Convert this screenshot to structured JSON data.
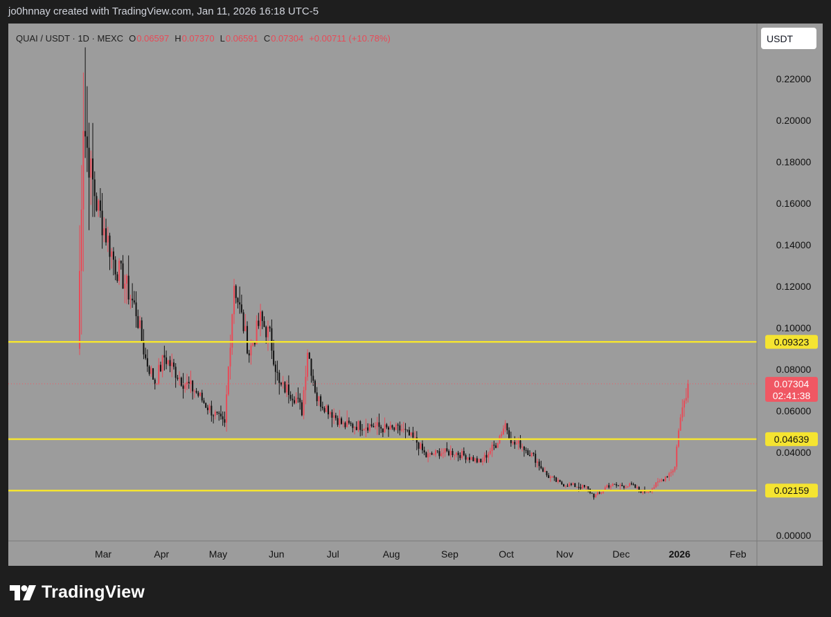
{
  "header": {
    "attribution": "jo0hnnay created with TradingView.com, Jan 11, 2026 16:18 UTC-5"
  },
  "legend": {
    "symbol": "QUAI / USDT · 1D · MEXC",
    "open_label": "O",
    "open": "0.06597",
    "high_label": "H",
    "high": "0.07370",
    "low_label": "L",
    "low": "0.06591",
    "close_label": "C",
    "close": "0.07304",
    "change": "+0.00711 (+10.78%)"
  },
  "currency_button": "USDT",
  "branding": {
    "name": "TradingView"
  },
  "colors": {
    "background": "#1e1e1e",
    "plot": "#9c9c9c",
    "up": "#e84a57",
    "down": "#111111",
    "level": "#f5e431",
    "level_label_bg": "#f5e431",
    "price_label_bg": "#f05763"
  },
  "chart_data": {
    "type": "candlestick",
    "symbol": "QUAI / USDT",
    "interval": "1D",
    "exchange": "MEXC",
    "x_labels": [
      "Mar",
      "Apr",
      "May",
      "Jun",
      "Jul",
      "Aug",
      "Sep",
      "Oct",
      "Nov",
      "Dec",
      "2026",
      "Feb"
    ],
    "y_ticks": [
      "0.22000",
      "0.20000",
      "0.18000",
      "0.16000",
      "0.14000",
      "0.12000",
      "0.10000",
      "0.08000",
      "0.06000",
      "0.04000",
      "0.00000"
    ],
    "ylim": [
      0,
      0.24
    ],
    "horizontal_levels": [
      {
        "value": 0.09323,
        "label": "0.09323"
      },
      {
        "value": 0.04639,
        "label": "0.04639"
      },
      {
        "value": 0.02159,
        "label": "0.02159"
      }
    ],
    "current_price": {
      "value": 0.07304,
      "label": "0.07304",
      "countdown": "02:41:38"
    },
    "grid": false,
    "daily_close_path": [
      {
        "date": "2025-02-21",
        "close": 0.09
      },
      {
        "date": "2025-02-24",
        "close": 0.2
      },
      {
        "date": "2025-02-27",
        "close": 0.18
      },
      {
        "date": "2025-03-03",
        "close": 0.16
      },
      {
        "date": "2025-03-08",
        "close": 0.145
      },
      {
        "date": "2025-03-13",
        "close": 0.13
      },
      {
        "date": "2025-03-18",
        "close": 0.122
      },
      {
        "date": "2025-03-24",
        "close": 0.108
      },
      {
        "date": "2025-03-29",
        "close": 0.085
      },
      {
        "date": "2025-04-03",
        "close": 0.074
      },
      {
        "date": "2025-04-08",
        "close": 0.086
      },
      {
        "date": "2025-04-13",
        "close": 0.08
      },
      {
        "date": "2025-04-18",
        "close": 0.074
      },
      {
        "date": "2025-04-24",
        "close": 0.07
      },
      {
        "date": "2025-04-30",
        "close": 0.063
      },
      {
        "date": "2025-05-06",
        "close": 0.057
      },
      {
        "date": "2025-05-10",
        "close": 0.053
      },
      {
        "date": "2025-05-13",
        "close": 0.095
      },
      {
        "date": "2025-05-15",
        "close": 0.122
      },
      {
        "date": "2025-05-19",
        "close": 0.105
      },
      {
        "date": "2025-05-23",
        "close": 0.088
      },
      {
        "date": "2025-05-29",
        "close": 0.104
      },
      {
        "date": "2025-06-03",
        "close": 0.096
      },
      {
        "date": "2025-06-08",
        "close": 0.072
      },
      {
        "date": "2025-06-13",
        "close": 0.07
      },
      {
        "date": "2025-06-17",
        "close": 0.066
      },
      {
        "date": "2025-06-20",
        "close": 0.06
      },
      {
        "date": "2025-06-23",
        "close": 0.09
      },
      {
        "date": "2025-06-28",
        "close": 0.066
      },
      {
        "date": "2025-07-05",
        "close": 0.06
      },
      {
        "date": "2025-07-12",
        "close": 0.053
      },
      {
        "date": "2025-07-20",
        "close": 0.053
      },
      {
        "date": "2025-07-27",
        "close": 0.053
      },
      {
        "date": "2025-08-05",
        "close": 0.051
      },
      {
        "date": "2025-08-12",
        "close": 0.051
      },
      {
        "date": "2025-08-20",
        "close": 0.045
      },
      {
        "date": "2025-08-25",
        "close": 0.038
      },
      {
        "date": "2025-09-01",
        "close": 0.04
      },
      {
        "date": "2025-09-09",
        "close": 0.04
      },
      {
        "date": "2025-09-16",
        "close": 0.038
      },
      {
        "date": "2025-09-23",
        "close": 0.035
      },
      {
        "date": "2025-09-27",
        "close": 0.04
      },
      {
        "date": "2025-10-01",
        "close": 0.044
      },
      {
        "date": "2025-10-06",
        "close": 0.054
      },
      {
        "date": "2025-10-10",
        "close": 0.044
      },
      {
        "date": "2025-10-14",
        "close": 0.044
      },
      {
        "date": "2025-10-21",
        "close": 0.038
      },
      {
        "date": "2025-10-28",
        "close": 0.029
      },
      {
        "date": "2025-11-04",
        "close": 0.025
      },
      {
        "date": "2025-11-11",
        "close": 0.024
      },
      {
        "date": "2025-11-18",
        "close": 0.023
      },
      {
        "date": "2025-11-22",
        "close": 0.019
      },
      {
        "date": "2025-11-25",
        "close": 0.02
      },
      {
        "date": "2025-11-29",
        "close": 0.024
      },
      {
        "date": "2025-12-05",
        "close": 0.024
      },
      {
        "date": "2025-12-12",
        "close": 0.024
      },
      {
        "date": "2025-12-18",
        "close": 0.021
      },
      {
        "date": "2025-12-22",
        "close": 0.022
      },
      {
        "date": "2025-12-27",
        "close": 0.026
      },
      {
        "date": "2026-01-01",
        "close": 0.03
      },
      {
        "date": "2026-01-04",
        "close": 0.033
      },
      {
        "date": "2026-01-06",
        "close": 0.052
      },
      {
        "date": "2026-01-09",
        "close": 0.065
      },
      {
        "date": "2026-01-11",
        "close": 0.07304
      }
    ]
  }
}
